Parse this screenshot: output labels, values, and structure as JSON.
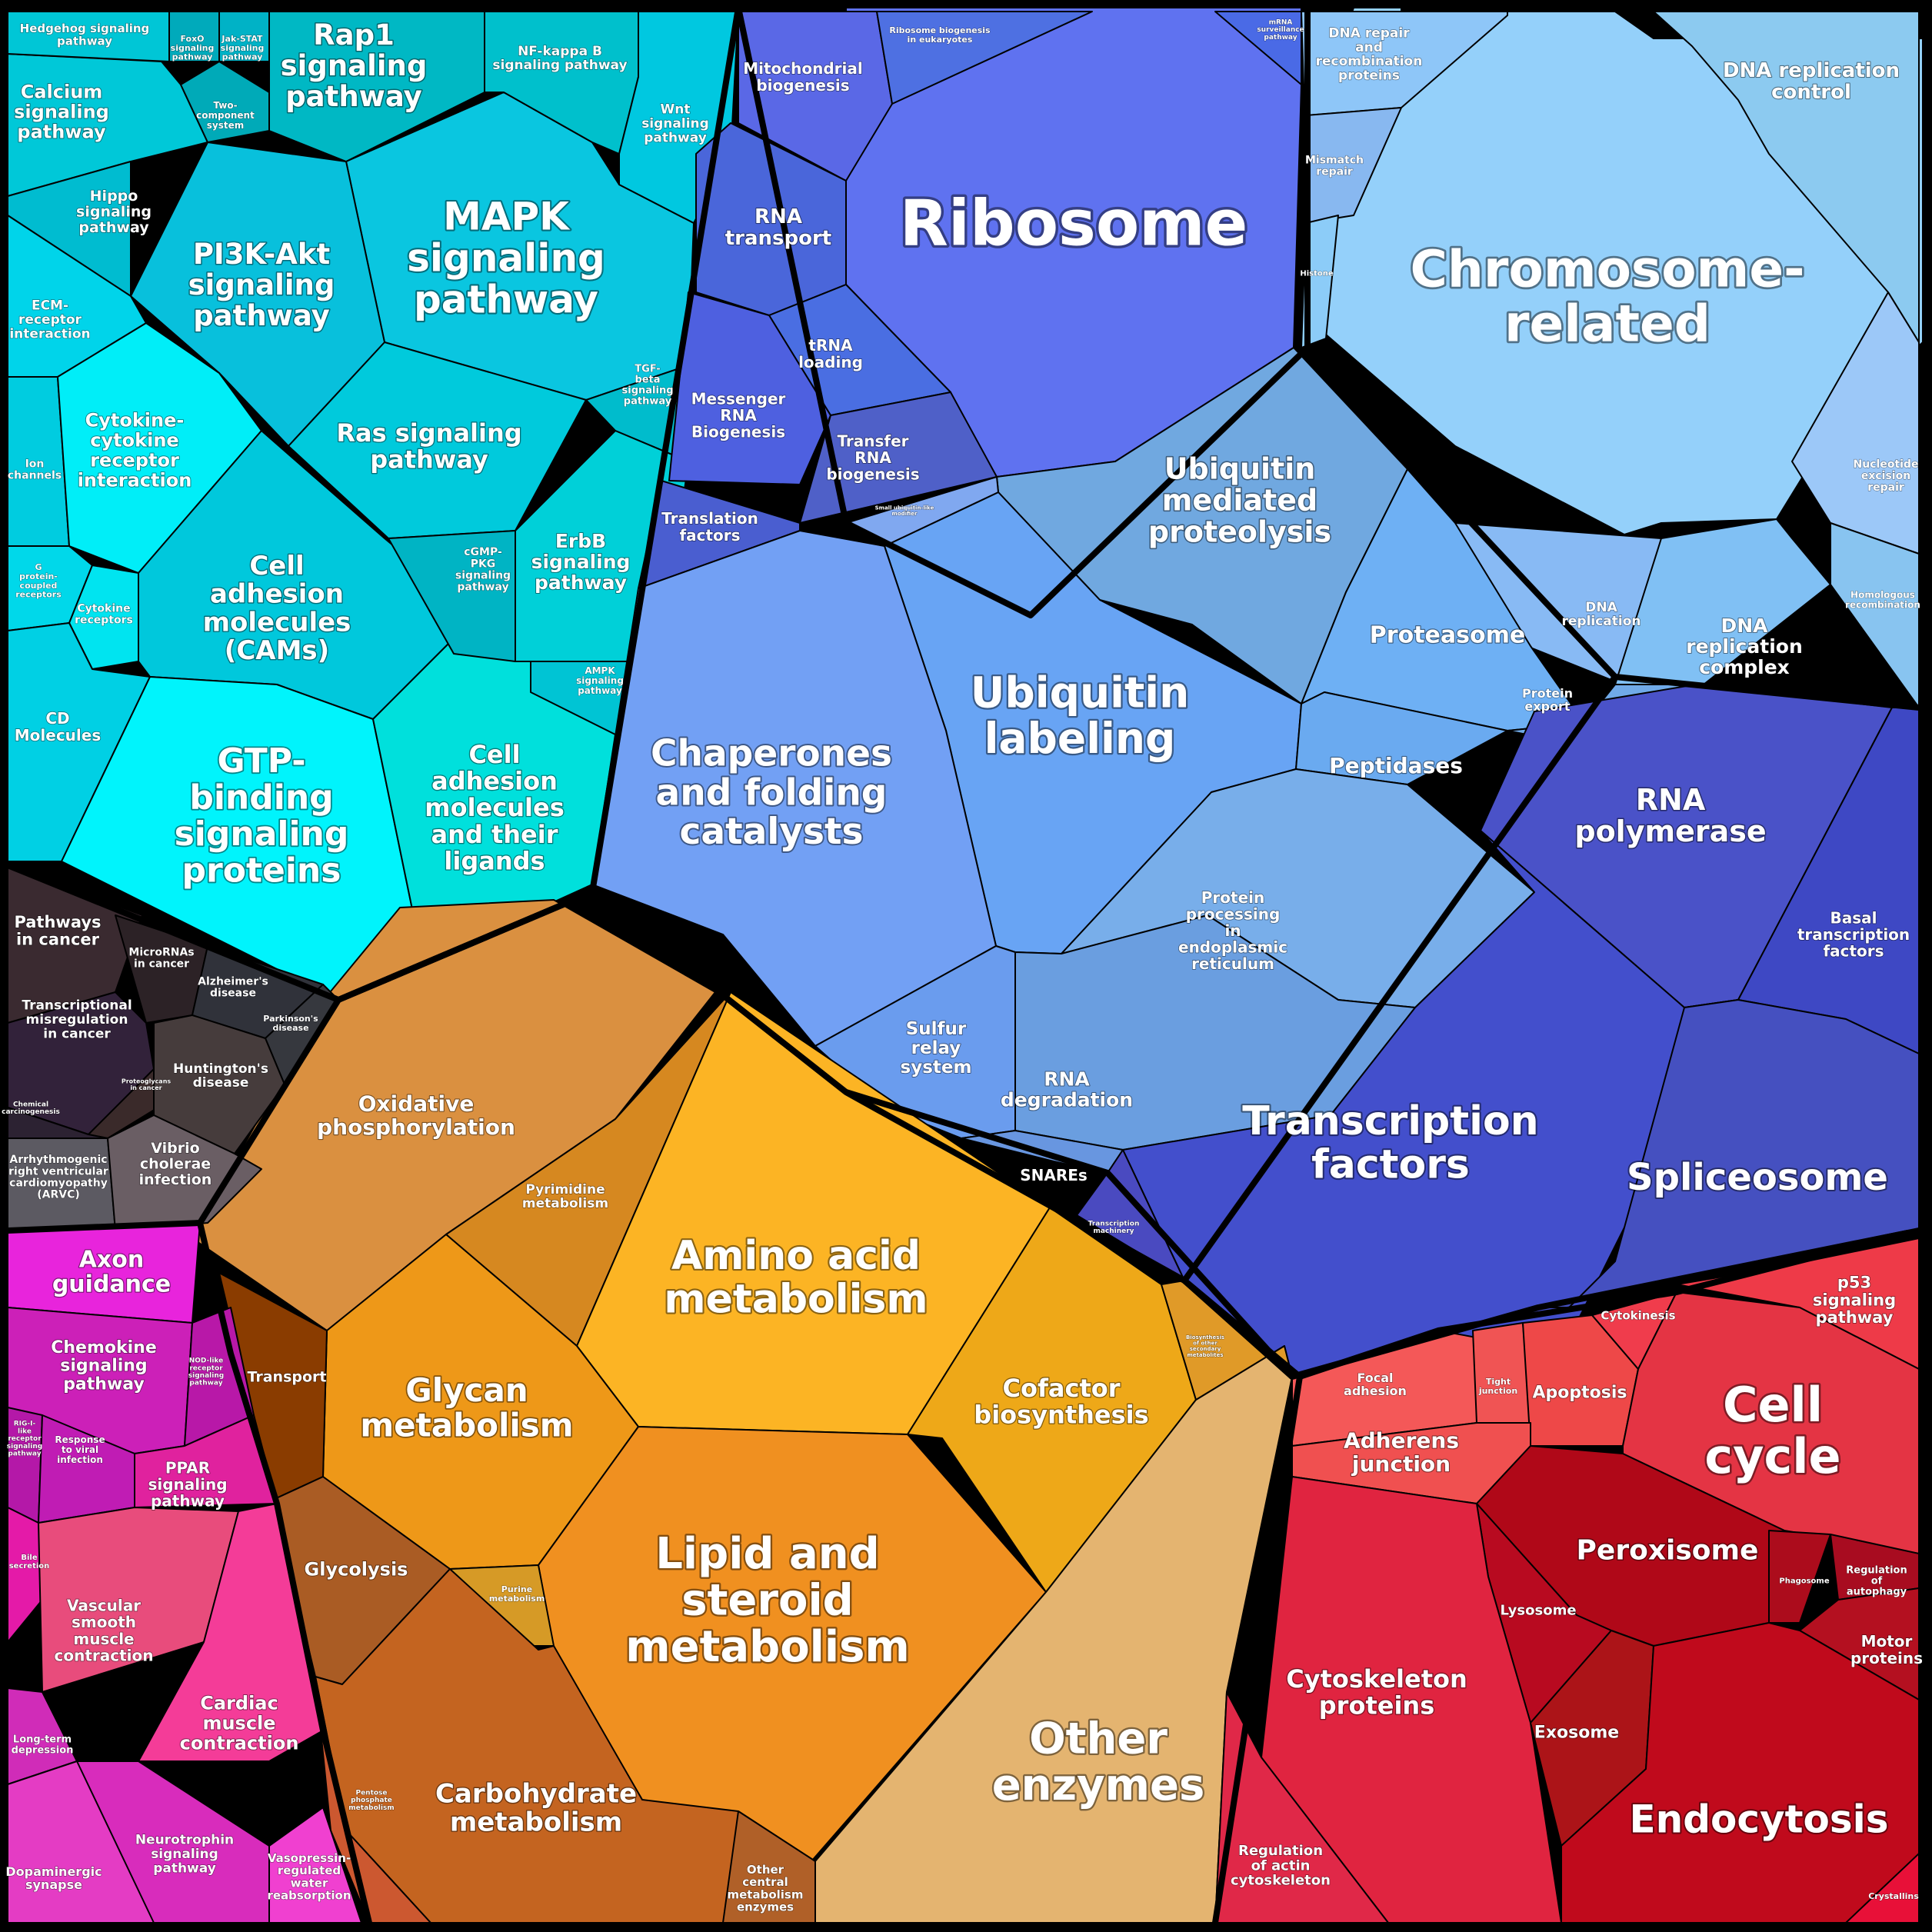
{
  "colors": {
    "signaling": "#00ccdd",
    "genetic": "#5f7af0",
    "chromosome": "#94d0fa",
    "ubiquitin": "#6aa8f4",
    "transcription": "#4450cc",
    "metabolism": "#f0a020",
    "disease": "#3a2a30",
    "immune": "#e030b0",
    "cellular": "#e02040"
  },
  "cells": [
    {
      "id": "ribosome",
      "label": "Ribosome",
      "color": "#5f72f0",
      "size": 1
    },
    {
      "id": "chromosome",
      "label": "Chromosome-related",
      "color": "#94d0fa",
      "size": 1
    },
    {
      "id": "mapk",
      "label": "MAPK signaling pathway",
      "color": "#0ac6e0",
      "size": 1
    },
    {
      "id": "pi3k",
      "label": "PI3K-Akt signaling pathway",
      "color": "#08c0dc",
      "size": 1
    },
    {
      "id": "rap1",
      "label": "Rap1 signaling pathway",
      "color": "#00b8c4",
      "size": 1
    },
    {
      "id": "calcium",
      "label": "Calcium signaling pathway",
      "color": "#00c8d8",
      "size": 1
    },
    {
      "id": "hedgehog",
      "label": "Hedgehog signaling pathway",
      "color": "#00c6d6",
      "size": 1
    },
    {
      "id": "foxo",
      "label": "FoxO signaling pathway",
      "color": "#00aabb",
      "size": 1
    },
    {
      "id": "jakstat",
      "label": "Jak-STAT signaling pathway",
      "color": "#00b2c6",
      "size": 1
    },
    {
      "id": "twocomp",
      "label": "Two-component system",
      "color": "#00aab8",
      "size": 1
    },
    {
      "id": "nfkb",
      "label": "NF-kappa B signaling pathway",
      "color": "#00c0cc",
      "size": 1
    },
    {
      "id": "wnt",
      "label": "Wnt signaling pathway",
      "color": "#00c8e0",
      "size": 1
    },
    {
      "id": "hippo",
      "label": "Hippo signaling pathway",
      "color": "#00bcd0",
      "size": 1
    },
    {
      "id": "ecm",
      "label": "ECM-receptor interaction",
      "color": "#00d4ea",
      "size": 1
    },
    {
      "id": "ion",
      "label": "Ion channels",
      "color": "#00cce0",
      "size": 1
    },
    {
      "id": "cytokine",
      "label": "Cytokine-cytokine receptor interaction",
      "color": "#00eef8",
      "size": 1
    },
    {
      "id": "gprotein",
      "label": "G protein-coupled receptors",
      "color": "#00d8ea",
      "size": 1
    },
    {
      "id": "cytorec",
      "label": "Cytokine receptors",
      "color": "#00e4f0",
      "size": 1
    },
    {
      "id": "cd",
      "label": "CD Molecules",
      "color": "#00d0e4",
      "size": 1
    },
    {
      "id": "cams",
      "label": "Cell adhesion molecules (CAMs)",
      "color": "#00c8dc",
      "size": 1
    },
    {
      "id": "gtp",
      "label": "GTP-binding signaling proteins",
      "color": "#00f4fc",
      "size": 1
    },
    {
      "id": "cam_lig",
      "label": "Cell adhesion molecules and their ligands",
      "color": "#00e0dc",
      "size": 1
    },
    {
      "id": "ras",
      "label": "Ras signaling pathway",
      "color": "#00cadc",
      "size": 1
    },
    {
      "id": "tgf",
      "label": "TGF-beta signaling pathway",
      "color": "#00bccc",
      "size": 1
    },
    {
      "id": "cgmp",
      "label": "cGMP-PKG signaling pathway",
      "color": "#00b4c4",
      "size": 1
    },
    {
      "id": "erbb",
      "label": "ErbB signaling pathway",
      "color": "#00d0d8",
      "size": 1
    },
    {
      "id": "ampk",
      "label": "AMPK signaling pathway",
      "color": "#00c4d4",
      "size": 1
    },
    {
      "id": "mito",
      "label": "Mitochondrial biogenesis",
      "color": "#5a68e6",
      "size": 1
    },
    {
      "id": "ribobio",
      "label": "Ribosome biogenesis in eukaryotes",
      "color": "#4e70e2",
      "size": 1
    },
    {
      "id": "mrna_surv",
      "label": "mRNA surveillance pathway",
      "color": "#4a6ae6",
      "size": 1
    },
    {
      "id": "rnatrans",
      "label": "RNA transport",
      "color": "#4a66da",
      "size": 1
    },
    {
      "id": "trna",
      "label": "tRNA loading",
      "color": "#4a6ee2",
      "size": 1
    },
    {
      "id": "messenger",
      "label": "Messenger RNA Biogenesis",
      "color": "#4e60e0",
      "size": 1
    },
    {
      "id": "transfer",
      "label": "Transfer RNA biogenesis",
      "color": "#4f60c8",
      "size": 1
    },
    {
      "id": "translation",
      "label": "Translation factors",
      "color": "#4a5ed0",
      "size": 1
    },
    {
      "id": "dnarepair",
      "label": "DNA repair and recombination proteins",
      "color": "#8ec6f8",
      "size": 1
    },
    {
      "id": "dnarepctl",
      "label": "DNA replication control",
      "color": "#8ccaf0",
      "size": 1
    },
    {
      "id": "mismatch",
      "label": "Mismatch repair",
      "color": "#88b8f0",
      "size": 1
    },
    {
      "id": "histone",
      "label": "Histone",
      "color": "#8cccf8",
      "size": 1
    },
    {
      "id": "nucleotide",
      "label": "Nucleotide excision repair",
      "color": "#9cc8f8",
      "size": 1
    },
    {
      "id": "dnarep",
      "label": "DNA replication",
      "color": "#88baf4",
      "size": 1
    },
    {
      "id": "dnarepcx",
      "label": "DNA replication complex",
      "color": "#80c0f4",
      "size": 1
    },
    {
      "id": "homolog",
      "label": "Homologous recombination",
      "color": "#88c4f0",
      "size": 1
    },
    {
      "id": "ubmed",
      "label": "Ubiquitin mediated proteolysis",
      "color": "#70a8e0",
      "size": 1
    },
    {
      "id": "ublab",
      "label": "Ubiquitin labeling",
      "color": "#68a4f4",
      "size": 1
    },
    {
      "id": "chaperones",
      "label": "Chaperones and folding catalysts",
      "color": "#72a0f4",
      "size": 1
    },
    {
      "id": "proteasome",
      "label": "Proteasome",
      "color": "#6eb0f4",
      "size": 1
    },
    {
      "id": "protexport",
      "label": "Protein export",
      "color": "#70aae8",
      "size": 1
    },
    {
      "id": "peptidases",
      "label": "Peptidases",
      "color": "#6aaaf0",
      "size": 1
    },
    {
      "id": "protproc",
      "label": "Protein processing in endoplasmic reticulum",
      "color": "#78aeea",
      "size": 1
    },
    {
      "id": "sulfur",
      "label": "Sulfur relay system",
      "color": "#6a9cee",
      "size": 1
    },
    {
      "id": "rnadeg",
      "label": "RNA degradation",
      "color": "#6a9ee0",
      "size": 1
    },
    {
      "id": "snares",
      "label": "SNAREs",
      "color": "#6896e0",
      "size": 1
    },
    {
      "id": "sulfrelay2",
      "label": "Small ubiquitin-like modifier",
      "color": "#80a8f0",
      "size": 1
    },
    {
      "id": "rnapol",
      "label": "RNA polymerase",
      "color": "#4a52c8",
      "size": 1
    },
    {
      "id": "basal",
      "label": "Basal transcription factors",
      "color": "#3e48c4",
      "size": 1
    },
    {
      "id": "tf",
      "label": "Transcription factors",
      "color": "#434fcc",
      "size": 1
    },
    {
      "id": "spliceosome",
      "label": "Spliceosome",
      "color": "#4550c0",
      "size": 1
    },
    {
      "id": "transmach",
      "label": "Transcription machinery",
      "color": "#4a4ac0",
      "size": 1
    },
    {
      "id": "oxphos",
      "label": "Oxidative phosphorylation",
      "color": "#da9040",
      "size": 1
    },
    {
      "id": "pyrimidine",
      "label": "Pyrimidine metabolism",
      "color": "#d68820",
      "size": 1
    },
    {
      "id": "amino",
      "label": "Amino acid metabolism",
      "color": "#fcb424",
      "size": 1
    },
    {
      "id": "glycan",
      "label": "Glycan metabolism",
      "color": "#ee9818",
      "size": 1
    },
    {
      "id": "cofactor",
      "label": "Cofactor biosynthesis",
      "color": "#eea818",
      "size": 1
    },
    {
      "id": "lipid",
      "label": "Lipid and steroid metabolism",
      "color": "#f09020",
      "size": 1
    },
    {
      "id": "transport",
      "label": "Transport",
      "color": "#8a3c00",
      "size": 1
    },
    {
      "id": "glycolysis",
      "label": "Glycolysis",
      "color": "#aa5c24",
      "size": 1
    },
    {
      "id": "purine",
      "label": "Purine metabolism",
      "color": "#d69a26",
      "size": 1
    },
    {
      "id": "carb",
      "label": "Carbohydrate metabolism",
      "color": "#c46420",
      "size": 1
    },
    {
      "id": "pentose",
      "label": "Pentose phosphate metabolism",
      "color": "#cc5830",
      "size": 1
    },
    {
      "id": "othercentral",
      "label": "Other central metabolism enzymes",
      "color": "#b06028",
      "size": 1
    },
    {
      "id": "otherenz",
      "label": "Other enzymes",
      "color": "#e4b470",
      "size": 1
    },
    {
      "id": "biosynth",
      "label": "Biosynthesis of other secondary metabolites",
      "color": "#e09a28",
      "size": 1
    },
    {
      "id": "pathways",
      "label": "Pathways in cancer",
      "color": "#3a2a30",
      "size": 1
    },
    {
      "id": "microrna",
      "label": "MicroRNAs in cancer",
      "color": "#2c2226",
      "size": 1
    },
    {
      "id": "alz",
      "label": "Alzheimer's disease",
      "color": "#30323a",
      "size": 1
    },
    {
      "id": "park",
      "label": "Parkinson's disease",
      "color": "#36383e",
      "size": 1
    },
    {
      "id": "transmis",
      "label": "Transcriptional misregulation in cancer",
      "color": "#32223a",
      "size": 1
    },
    {
      "id": "proteoglycans",
      "label": "Proteoglycans in cancer",
      "color": "#3a2a2a",
      "size": 1
    },
    {
      "id": "hunt",
      "label": "Huntington's disease",
      "color": "#463c3c",
      "size": 1
    },
    {
      "id": "chemcarc",
      "label": "Chemical carcinogenesis",
      "color": "#2c2232",
      "size": 1
    },
    {
      "id": "arvc",
      "label": "Arrhythmogenic right ventricular cardiomyopathy (ARVC)",
      "color": "#5c5a62",
      "size": 1
    },
    {
      "id": "vibrio",
      "label": "Vibrio cholerae infection",
      "color": "#6a5e64",
      "size": 1
    },
    {
      "id": "axon",
      "label": "Axon guidance",
      "color": "#e824dc",
      "size": 1
    },
    {
      "id": "chemokine",
      "label": "Chemokine signaling pathway",
      "color": "#cc20b8",
      "size": 1
    },
    {
      "id": "nod",
      "label": "NOD-like receptor signaling pathway",
      "color": "#b818a8",
      "size": 1
    },
    {
      "id": "rigi",
      "label": "RIG-I-like receptor signaling pathway",
      "color": "#b418a8",
      "size": 1
    },
    {
      "id": "response",
      "label": "Response to viral infection",
      "color": "#c01cb4",
      "size": 1
    },
    {
      "id": "ppar",
      "label": "PPAR signaling pathway",
      "color": "#e0229e",
      "size": 1
    },
    {
      "id": "bile",
      "label": "Bile secretion",
      "color": "#e41aa8",
      "size": 1
    },
    {
      "id": "vascular",
      "label": "Vascular smooth muscle contraction",
      "color": "#e84c7c",
      "size": 1
    },
    {
      "id": "cardiac",
      "label": "Cardiac muscle contraction",
      "color": "#f43c98",
      "size": 1
    },
    {
      "id": "ltd",
      "label": "Long-term depression",
      "color": "#d02cb8",
      "size": 1
    },
    {
      "id": "dopa",
      "label": "Dopaminergic synapse",
      "color": "#e43cc4",
      "size": 1
    },
    {
      "id": "neurotroph",
      "label": "Neurotrophin signaling pathway",
      "color": "#d82cbc",
      "size": 1
    },
    {
      "id": "vaso",
      "label": "Vasopressin-regulated water reabsorption",
      "color": "#f040d0",
      "size": 1
    },
    {
      "id": "focal",
      "label": "Focal adhesion",
      "color": "#f45858",
      "size": 1
    },
    {
      "id": "tight",
      "label": "Tight junction",
      "color": "#f05454",
      "size": 1
    },
    {
      "id": "apoptosis",
      "label": "Apoptosis",
      "color": "#ee4848",
      "size": 1
    },
    {
      "id": "cytokinesis",
      "label": "Cytokinesis",
      "color": "#f03c4c",
      "size": 1
    },
    {
      "id": "p53",
      "label": "p53 signaling pathway",
      "color": "#ee3a48",
      "size": 1
    },
    {
      "id": "adherens",
      "label": "Adherens junction",
      "color": "#f05050",
      "size": 1
    },
    {
      "id": "cellcycle",
      "label": "Cell cycle",
      "color": "#e43444",
      "size": 1
    },
    {
      "id": "peroxisome",
      "label": "Peroxisome",
      "color": "#b00818",
      "size": 1
    },
    {
      "id": "phagosome",
      "label": "Phagosome",
      "color": "#ac0c1c",
      "size": 1
    },
    {
      "id": "regauto",
      "label": "Regulation of autophagy",
      "color": "#a80c20",
      "size": 1
    },
    {
      "id": "lysosome",
      "label": "Lysosome",
      "color": "#b80a20",
      "size": 1
    },
    {
      "id": "motor",
      "label": "Motor proteins",
      "color": "#b41020",
      "size": 1
    },
    {
      "id": "cytoskel",
      "label": "Cytoskeleton proteins",
      "color": "#e02440",
      "size": 1
    },
    {
      "id": "exosome",
      "label": "Exosome",
      "color": "#ac1418",
      "size": 1
    },
    {
      "id": "endocytosis",
      "label": "Endocytosis",
      "color": "#c00a1c",
      "size": 1
    },
    {
      "id": "regactin",
      "label": "Regulation of actin cytoskeleton",
      "color": "#e02848",
      "size": 1
    },
    {
      "id": "crystallins",
      "label": "Crystallins",
      "color": "#e81038",
      "size": 1
    }
  ]
}
